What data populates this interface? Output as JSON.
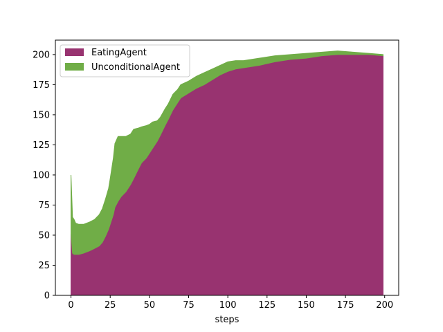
{
  "chart_data": {
    "type": "area",
    "stacked": true,
    "xlabel": "steps",
    "ylabel": "",
    "title": "",
    "xlim": [
      -9.95,
      208.95
    ],
    "ylim": [
      0,
      212
    ],
    "x_ticks": [
      0,
      25,
      50,
      75,
      100,
      125,
      150,
      175,
      200
    ],
    "y_ticks": [
      0,
      25,
      50,
      75,
      100,
      125,
      150,
      175,
      200
    ],
    "legend_position": "top-left",
    "x": [
      0,
      1,
      2,
      3,
      5,
      8,
      10,
      12,
      15,
      18,
      20,
      22,
      24,
      25,
      27,
      28,
      30,
      32,
      35,
      38,
      40,
      43,
      45,
      48,
      50,
      52,
      55,
      57,
      60,
      62,
      65,
      68,
      70,
      75,
      80,
      85,
      90,
      95,
      100,
      105,
      110,
      120,
      130,
      140,
      150,
      160,
      170,
      180,
      190,
      199
    ],
    "series": [
      {
        "name": "EatingAgent",
        "color": "#983370",
        "values": [
          51,
          35,
          34,
          34,
          34,
          35,
          36,
          37,
          39,
          41,
          44,
          49,
          55,
          59,
          67,
          73,
          78,
          82,
          86,
          92,
          97,
          105,
          110,
          114,
          118,
          122,
          128,
          133,
          141,
          146,
          154,
          160,
          164,
          168,
          172,
          175,
          179,
          183,
          186,
          188,
          189,
          191,
          194,
          196,
          197,
          199,
          200,
          200,
          200,
          199
        ]
      },
      {
        "name": "UnconditionalAgent",
        "color": "#70ad47",
        "values": [
          49,
          30,
          29,
          26,
          25,
          24,
          24,
          24,
          24,
          26,
          28,
          31,
          34,
          38,
          47,
          53,
          54,
          50,
          46,
          42,
          41,
          34,
          30,
          27,
          24,
          22,
          17,
          15,
          14,
          13,
          13,
          11,
          11,
          10,
          10,
          10,
          9,
          8,
          8,
          7,
          6,
          6,
          5,
          4,
          4,
          3,
          3,
          2,
          1,
          1
        ]
      }
    ]
  }
}
